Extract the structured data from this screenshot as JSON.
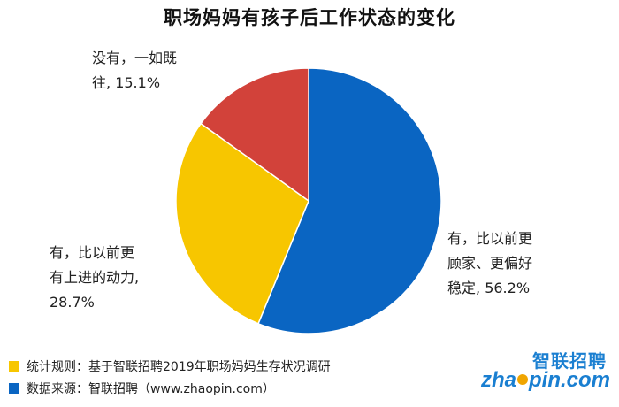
{
  "chart_data": {
    "type": "pie",
    "title": "职场妈妈有孩子后工作状态的变化",
    "slices": [
      {
        "label_lines": [
          "有，比以前更",
          "顾家、更偏好",
          "稳定,"
        ],
        "value_text": "56.2%",
        "value": 56.2,
        "color": "#0a65c2"
      },
      {
        "label_lines": [
          "有，比以前更",
          "有上进的动力,"
        ],
        "value_text": "28.7%",
        "value": 28.7,
        "color": "#f7c600"
      },
      {
        "label_lines": [
          "没有，一如既",
          "往,"
        ],
        "value_text": "15.1%",
        "value": 15.1,
        "color": "#d2423a"
      }
    ]
  },
  "footer": {
    "rule_text": "统计规则：基于智联招聘2019年职场妈妈生存状况调研",
    "rule_color": "#f7c600",
    "source_text": "数据来源：智联招聘（www.zhaopin.com）",
    "source_color": "#0a65c2"
  },
  "logo": {
    "cn": "智联招聘",
    "en_a": "zha",
    "en_b": "pin.com"
  }
}
